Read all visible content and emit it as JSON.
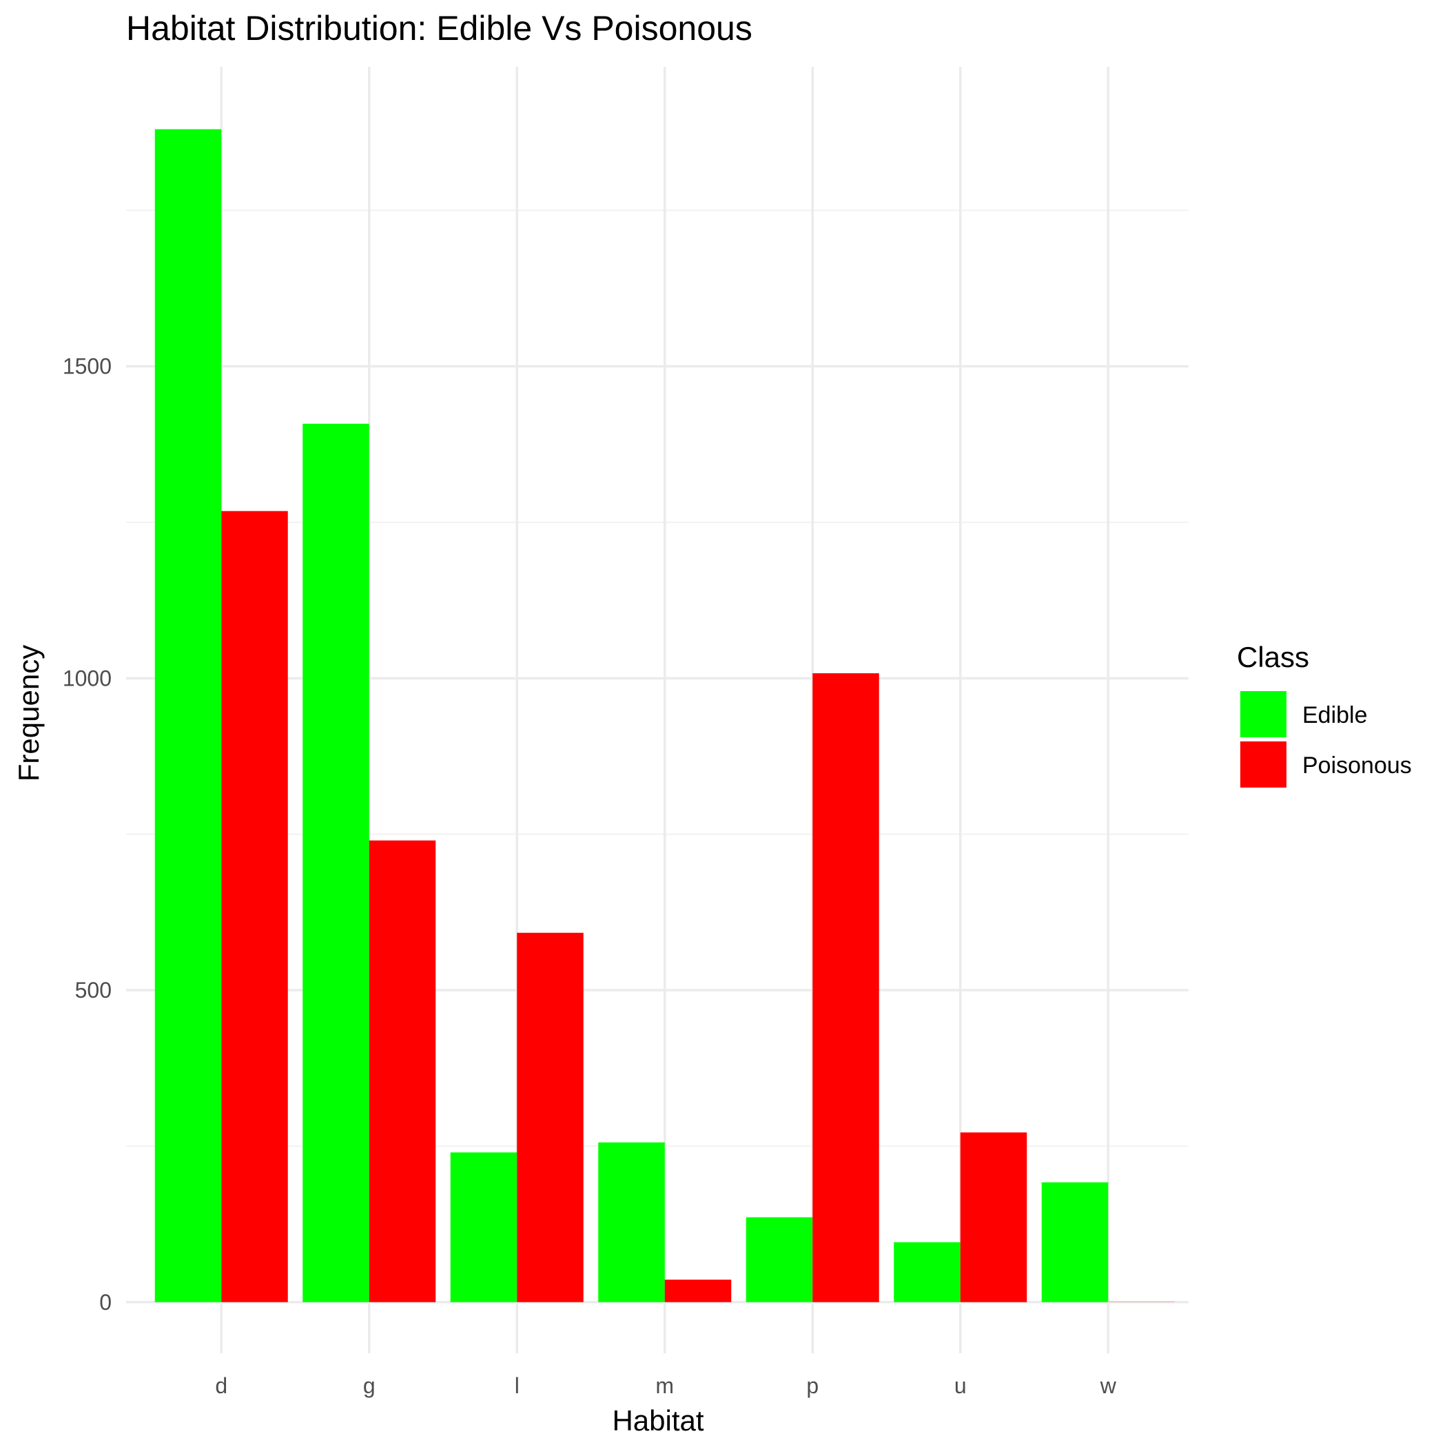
{
  "chart_data": {
    "type": "bar",
    "title": "Habitat Distribution: Edible Vs Poisonous",
    "xlabel": "Habitat",
    "ylabel": "Frequency",
    "categories": [
      "d",
      "g",
      "l",
      "m",
      "p",
      "u",
      "w"
    ],
    "series": [
      {
        "name": "Edible",
        "color": "#00ff00",
        "values": [
          1880,
          1408,
          240,
          256,
          136,
          96,
          192
        ]
      },
      {
        "name": "Poisonous",
        "color": "#ff0000",
        "values": [
          1268,
          740,
          592,
          36,
          1008,
          272,
          0
        ]
      }
    ],
    "ylim": [
      -82,
      1980
    ],
    "yticks": [
      0,
      500,
      1000,
      1500
    ],
    "legend": {
      "title": "Class",
      "position": "right"
    },
    "grid": true
  }
}
